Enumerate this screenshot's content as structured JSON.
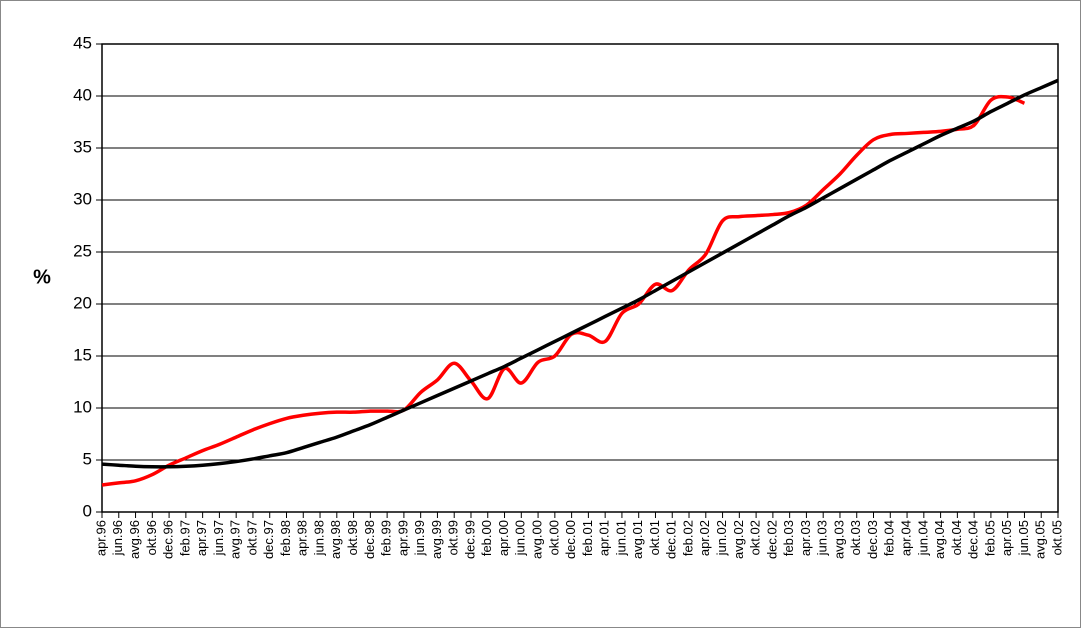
{
  "chart_data": {
    "type": "line",
    "y_label": "%",
    "categories": [
      "apr.96",
      "jun.96",
      "avg.96",
      "okt.96",
      "dec.96",
      "feb.97",
      "apr.97",
      "jun.97",
      "avg.97",
      "okt.97",
      "dec.97",
      "feb.98",
      "apr.98",
      "jun.98",
      "avg.98",
      "okt.98",
      "dec.98",
      "feb.99",
      "apr.99",
      "jun.99",
      "avg.99",
      "okt.99",
      "dec.99",
      "feb.00",
      "apr.00",
      "jun.00",
      "avg.00",
      "okt.00",
      "dec.00",
      "feb.01",
      "apr.01",
      "jun.01",
      "avg.01",
      "okt.01",
      "dec.01",
      "feb.02",
      "apr.02",
      "jun.02",
      "avg.02",
      "okt.02",
      "dec.02",
      "feb.03",
      "apr.03",
      "jun.03",
      "avg.03",
      "okt.03",
      "dec.03",
      "feb.04",
      "apr.04",
      "jun.04",
      "avg.04",
      "okt.04",
      "dec.04",
      "feb.05",
      "apr.05",
      "jun.05",
      "avg.05",
      "okt.05"
    ],
    "series": [
      {
        "color": "#ff0000",
        "values": [
          2.6,
          2.8,
          3.0,
          3.6,
          4.5,
          5.2,
          5.9,
          6.5,
          7.2,
          7.9,
          8.5,
          9.0,
          9.3,
          9.5,
          9.6,
          9.6,
          9.7,
          9.7,
          9.8,
          11.5,
          12.7,
          14.3,
          12.6,
          10.9,
          13.8,
          12.4,
          14.4,
          15.0,
          17.1,
          17.0,
          16.4,
          19.1,
          20.0,
          21.9,
          21.3,
          23.3,
          24.8,
          28.0,
          28.4,
          28.5,
          28.6,
          28.8,
          29.5,
          31.0,
          32.5,
          34.3,
          35.8,
          36.3,
          36.4,
          36.5,
          36.6,
          36.8,
          37.2,
          39.6,
          39.9,
          39.3,
          null,
          null
        ]
      },
      {
        "color": "#000000",
        "values": [
          4.6,
          4.5,
          4.4,
          4.35,
          4.35,
          4.4,
          4.5,
          4.65,
          4.85,
          5.1,
          5.4,
          5.7,
          6.2,
          6.7,
          7.2,
          7.8,
          8.4,
          9.1,
          9.8,
          10.5,
          11.2,
          11.9,
          12.6,
          13.3,
          14.0,
          14.8,
          15.6,
          16.4,
          17.2,
          18.0,
          18.8,
          19.6,
          20.4,
          21.3,
          22.2,
          23.1,
          24.0,
          24.9,
          25.8,
          26.7,
          27.6,
          28.5,
          29.3,
          30.2,
          31.1,
          32.0,
          32.9,
          33.8,
          34.6,
          35.4,
          36.2,
          36.9,
          37.6,
          38.5,
          39.3,
          40.1,
          40.8,
          41.5
        ]
      }
    ],
    "ylim": [
      0,
      45
    ],
    "yticks": [
      0,
      5,
      10,
      15,
      20,
      25,
      30,
      35,
      40,
      45
    ],
    "grid": true
  }
}
